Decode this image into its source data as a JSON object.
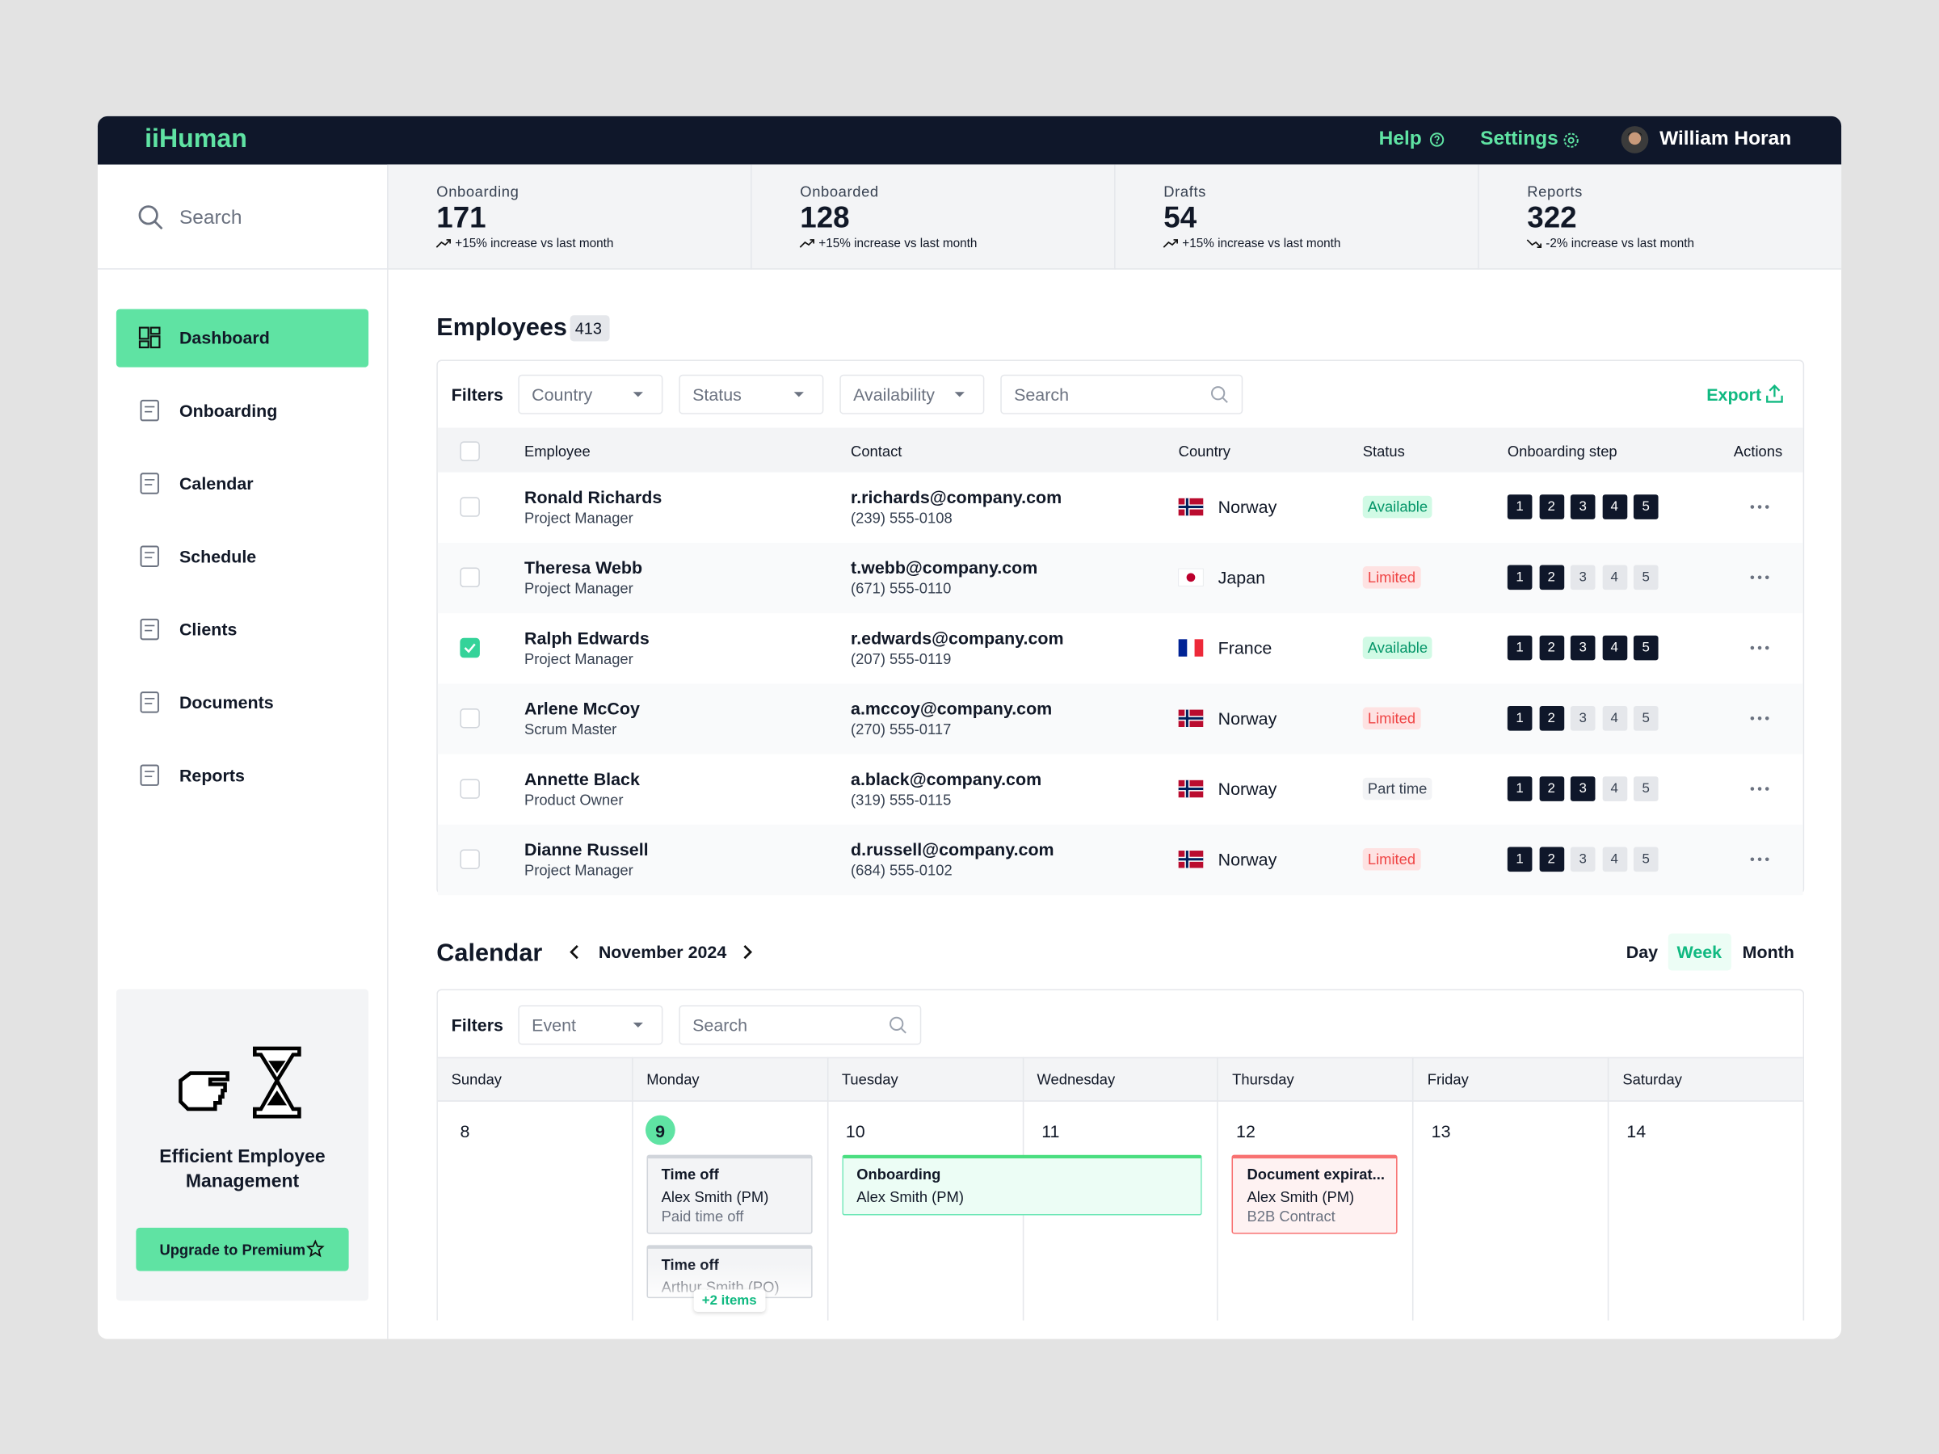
{
  "topbar": {
    "logo": "iiHuman",
    "help": "Help",
    "settings": "Settings",
    "user": "William Horan"
  },
  "sidebar": {
    "search": "Search",
    "items": [
      "Dashboard",
      "Onboarding",
      "Calendar",
      "Schedule",
      "Clients",
      "Documents",
      "Reports"
    ],
    "active": 0,
    "promo": {
      "title": "Efficient Employee Management",
      "button": "Upgrade to Premium"
    }
  },
  "stats": [
    {
      "label": "Onboarding",
      "value": 171,
      "change": "+15% increase vs last month",
      "trend": "up"
    },
    {
      "label": "Onboarded",
      "value": 128,
      "change": "+15% increase vs last month",
      "trend": "up"
    },
    {
      "label": "Drafts",
      "value": 54,
      "change": "+15% increase vs last month",
      "trend": "up"
    },
    {
      "label": "Reports",
      "value": 322,
      "change": "-2% increase vs last month",
      "trend": "down"
    }
  ],
  "employees": {
    "title": "Employees",
    "count": 413,
    "filters_label": "Filters",
    "filters": [
      "Country",
      "Status",
      "Availability"
    ],
    "search": "Search",
    "export": "Export",
    "columns": [
      "Employee",
      "Contact",
      "Country",
      "Status",
      "Onboarding step",
      "Actions"
    ],
    "steps": [
      1,
      2,
      3,
      4,
      5
    ],
    "rows": [
      {
        "name": "Ronald Richards",
        "role": "Project Manager",
        "email": "r.richards@company.com",
        "phone": "(239) 555-0108",
        "country": "Norway",
        "flag": {
          "style": "cross",
          "colors": [
            "#ba0c2f",
            "#ffffff",
            "#00205b"
          ]
        },
        "status": "Available",
        "tone": "green",
        "done": 5,
        "checked": false
      },
      {
        "name": "Theresa Webb",
        "role": "Project Manager",
        "email": "t.webb@company.com",
        "phone": "(671) 555-0110",
        "country": "Japan",
        "flag": {
          "style": "disc",
          "colors": [
            "#ffffff",
            "#bc002d"
          ]
        },
        "status": "Limited",
        "tone": "red",
        "done": 2,
        "checked": false
      },
      {
        "name": "Ralph Edwards",
        "role": "Project Manager",
        "email": "r.edwards@company.com",
        "phone": "(207) 555-0119",
        "country": "France",
        "flag": {
          "style": "tricolor",
          "colors": [
            "#002395",
            "#ffffff",
            "#ed2939"
          ]
        },
        "status": "Available",
        "tone": "green",
        "done": 5,
        "checked": true
      },
      {
        "name": "Arlene McCoy",
        "role": "Scrum Master",
        "email": "a.mccoy@company.com",
        "phone": "(270) 555-0117",
        "country": "Norway",
        "flag": {
          "style": "cross",
          "colors": [
            "#ba0c2f",
            "#ffffff",
            "#00205b"
          ]
        },
        "status": "Limited",
        "tone": "red",
        "done": 2,
        "checked": false
      },
      {
        "name": "Annette Black",
        "role": "Product Owner",
        "email": "a.black@company.com",
        "phone": "(319) 555-0115",
        "country": "Norway",
        "flag": {
          "style": "cross",
          "colors": [
            "#ba0c2f",
            "#ffffff",
            "#00205b"
          ]
        },
        "status": "Part time",
        "tone": "gray",
        "done": 3,
        "checked": false
      },
      {
        "name": "Dianne Russell",
        "role": "Project Manager",
        "email": "d.russell@company.com",
        "phone": "(684) 555-0102",
        "country": "Norway",
        "flag": {
          "style": "cross",
          "colors": [
            "#ba0c2f",
            "#ffffff",
            "#00205b"
          ]
        },
        "status": "Limited",
        "tone": "red",
        "done": 2,
        "checked": false
      }
    ]
  },
  "calendar": {
    "title": "Calendar",
    "month": "November 2024",
    "views": [
      "Day",
      "Week",
      "Month"
    ],
    "active_view": 1,
    "filters_label": "Filters",
    "filters": [
      "Event"
    ],
    "search": "Search",
    "days": [
      {
        "name": "Sunday",
        "date": 8
      },
      {
        "name": "Monday",
        "date": 9
      },
      {
        "name": "Tuesday",
        "date": 10
      },
      {
        "name": "Wednesday",
        "date": 11
      },
      {
        "name": "Thursday",
        "date": 12
      },
      {
        "name": "Friday",
        "date": 13
      },
      {
        "name": "Saturday",
        "date": 14
      }
    ],
    "today": 1,
    "events": [
      {
        "title": "Time off",
        "person": "Alex Smith (PM)",
        "detail": "Paid time off",
        "day": 1,
        "span": 1,
        "slot": 0,
        "tone": "gray"
      },
      {
        "title": "Time off",
        "person": "Arthur Smith (PO)",
        "day": 1,
        "span": 1,
        "slot": 1,
        "tone": "gray"
      },
      {
        "title": "Onboarding",
        "person": "Alex Smith (PM)",
        "day": 2,
        "span": 2,
        "slot": 0,
        "tone": "green"
      },
      {
        "title": "Document expirat...",
        "person": "Alex Smith (PM)",
        "detail": "B2B Contract",
        "day": 4,
        "span": 1,
        "slot": 0,
        "tone": "red"
      }
    ],
    "more": {
      "day": 1,
      "label": "+2 items"
    }
  }
}
